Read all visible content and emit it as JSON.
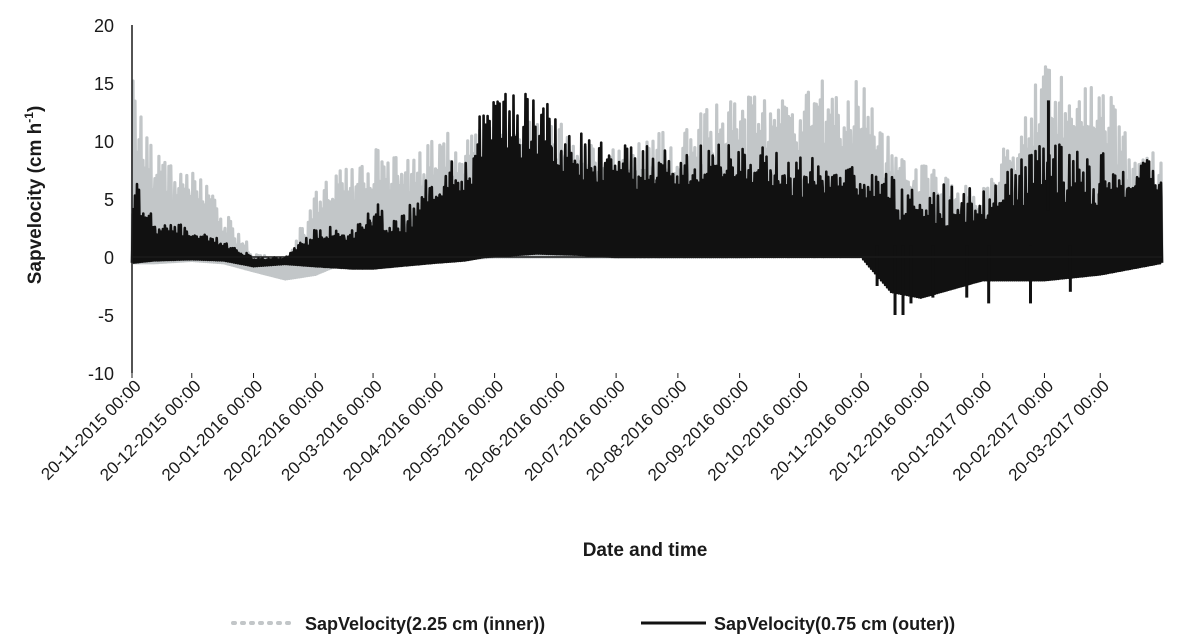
{
  "chart_data": {
    "type": "line",
    "title": "",
    "xlabel": "Date and time",
    "ylabel": "Sapvelocity (cm h",
    "ylabel_sup": "-1",
    "ylabel_end": ")",
    "ylim": [
      -10,
      20
    ],
    "yticks": [
      -10,
      -5,
      0,
      5,
      10,
      15,
      20
    ],
    "x_ticks": [
      "20-11-2015 00:00",
      "20-12-2015 00:00",
      "20-01-2016 00:00",
      "20-02-2016 00:00",
      "20-03-2016 00:00",
      "20-04-2016 00:00",
      "20-05-2016 00:00",
      "20-06-2016 00:00",
      "20-07-2016 00:00",
      "20-08-2016 00:00",
      "20-09-2016 00:00",
      "20-10-2016 00:00",
      "20-11-2016 00:00",
      "20-12-2016 00:00",
      "20-01-2017 00:00",
      "20-02-2017 00:00",
      "20-03-2017 00:00"
    ],
    "x_range": [
      "20-11-2015 00:00",
      "20-04-2017 00:00"
    ],
    "legend_position": "bottom",
    "series": [
      {
        "name": "SapVelocity(2.25 cm (inner))",
        "color": "#c2c6c8",
        "style": "dotted",
        "envelope": [
          {
            "date": "2015-11-20",
            "low": -0.5,
            "high": 15.5
          },
          {
            "date": "2015-12-01",
            "low": -0.5,
            "high": 9.0
          },
          {
            "date": "2015-12-20",
            "low": -0.3,
            "high": 8.0
          },
          {
            "date": "2016-01-05",
            "low": -0.5,
            "high": 4.0
          },
          {
            "date": "2016-01-20",
            "low": -1.2,
            "high": 0.5
          },
          {
            "date": "2016-02-05",
            "low": -1.9,
            "high": -0.5
          },
          {
            "date": "2016-02-20",
            "low": -1.5,
            "high": 5.5
          },
          {
            "date": "2016-03-05",
            "low": -0.5,
            "high": 8.0
          },
          {
            "date": "2016-03-20",
            "low": -0.5,
            "high": 9.5
          },
          {
            "date": "2016-04-10",
            "low": -0.3,
            "high": 10.0
          },
          {
            "date": "2016-05-01",
            "low": -0.2,
            "high": 11.0
          },
          {
            "date": "2016-05-20",
            "low": 0.0,
            "high": 11.5
          },
          {
            "date": "2016-06-20",
            "low": 0.0,
            "high": 12.0
          },
          {
            "date": "2016-07-20",
            "low": 0.0,
            "high": 10.0
          },
          {
            "date": "2016-08-20",
            "low": 0.0,
            "high": 11.0
          },
          {
            "date": "2016-09-10",
            "low": 0.0,
            "high": 14.0
          },
          {
            "date": "2016-09-20",
            "low": 0.0,
            "high": 14.5
          },
          {
            "date": "2016-10-20",
            "low": 0.2,
            "high": 15.0
          },
          {
            "date": "2016-11-20",
            "low": 0.5,
            "high": 15.5
          },
          {
            "date": "2016-12-05",
            "low": 0.0,
            "high": 10.0
          },
          {
            "date": "2016-12-20",
            "low": -0.5,
            "high": 8.0
          },
          {
            "date": "2017-01-20",
            "low": -0.5,
            "high": 6.0
          },
          {
            "date": "2017-02-05",
            "low": -1.0,
            "high": 12.0
          },
          {
            "date": "2017-02-20",
            "low": -1.5,
            "high": 16.5
          },
          {
            "date": "2017-03-10",
            "low": -1.0,
            "high": 15.5
          },
          {
            "date": "2017-03-25",
            "low": -0.5,
            "high": 15.5
          },
          {
            "date": "2017-04-05",
            "low": -0.5,
            "high": 9.0
          },
          {
            "date": "2017-04-20",
            "low": -0.5,
            "high": 9.0
          }
        ]
      },
      {
        "name": "SapVelocity(0.75 cm (outer))",
        "color": "#111111",
        "style": "solid",
        "envelope": [
          {
            "date": "2015-11-20",
            "low": -0.5,
            "high": 7.5
          },
          {
            "date": "2015-12-01",
            "low": -0.3,
            "high": 3.5
          },
          {
            "date": "2015-12-20",
            "low": -0.2,
            "high": 2.5
          },
          {
            "date": "2016-01-05",
            "low": -0.3,
            "high": 1.5
          },
          {
            "date": "2016-01-20",
            "low": -0.8,
            "high": 0.0
          },
          {
            "date": "2016-02-05",
            "low": -0.6,
            "high": 0.0
          },
          {
            "date": "2016-02-20",
            "low": -0.8,
            "high": 2.5
          },
          {
            "date": "2016-03-10",
            "low": -1.0,
            "high": 3.0
          },
          {
            "date": "2016-03-20",
            "low": -1.0,
            "high": 5.0
          },
          {
            "date": "2016-04-01",
            "low": -0.8,
            "high": 3.0
          },
          {
            "date": "2016-04-20",
            "low": -0.5,
            "high": 8.0
          },
          {
            "date": "2016-05-05",
            "low": -0.3,
            "high": 9.0
          },
          {
            "date": "2016-05-15",
            "low": 0.0,
            "high": 14.0
          },
          {
            "date": "2016-06-10",
            "low": 0.3,
            "high": 14.5
          },
          {
            "date": "2016-07-01",
            "low": 0.2,
            "high": 11.0
          },
          {
            "date": "2016-07-20",
            "low": 0.0,
            "high": 10.0
          },
          {
            "date": "2016-08-20",
            "low": 0.0,
            "high": 9.5
          },
          {
            "date": "2016-09-20",
            "low": 0.0,
            "high": 10.0
          },
          {
            "date": "2016-10-20",
            "low": 0.0,
            "high": 9.0
          },
          {
            "date": "2016-11-20",
            "low": 0.0,
            "high": 8.0
          },
          {
            "date": "2016-12-05",
            "low": -3.0,
            "high": 7.0
          },
          {
            "date": "2016-12-20",
            "low": -3.5,
            "high": 6.5
          },
          {
            "date": "2017-01-20",
            "low": -2.0,
            "high": 6.0
          },
          {
            "date": "2017-02-20",
            "low": -2.0,
            "high": 10.0
          },
          {
            "date": "2017-03-20",
            "low": -1.5,
            "high": 9.0
          },
          {
            "date": "2017-04-20",
            "low": -0.5,
            "high": 8.5
          }
        ],
        "spikes": [
          {
            "date": "2016-11-28",
            "value": -2.5
          },
          {
            "date": "2016-12-07",
            "value": -5.0
          },
          {
            "date": "2016-12-11",
            "value": -5.0
          },
          {
            "date": "2016-12-15",
            "value": -4.0
          },
          {
            "date": "2016-12-26",
            "value": -3.5
          },
          {
            "date": "2017-01-12",
            "value": -3.5
          },
          {
            "date": "2017-01-23",
            "value": -4.0
          },
          {
            "date": "2017-02-13",
            "value": -4.0
          },
          {
            "date": "2017-02-22",
            "value": 13.5
          },
          {
            "date": "2017-03-05",
            "value": -3.0
          }
        ]
      }
    ]
  }
}
